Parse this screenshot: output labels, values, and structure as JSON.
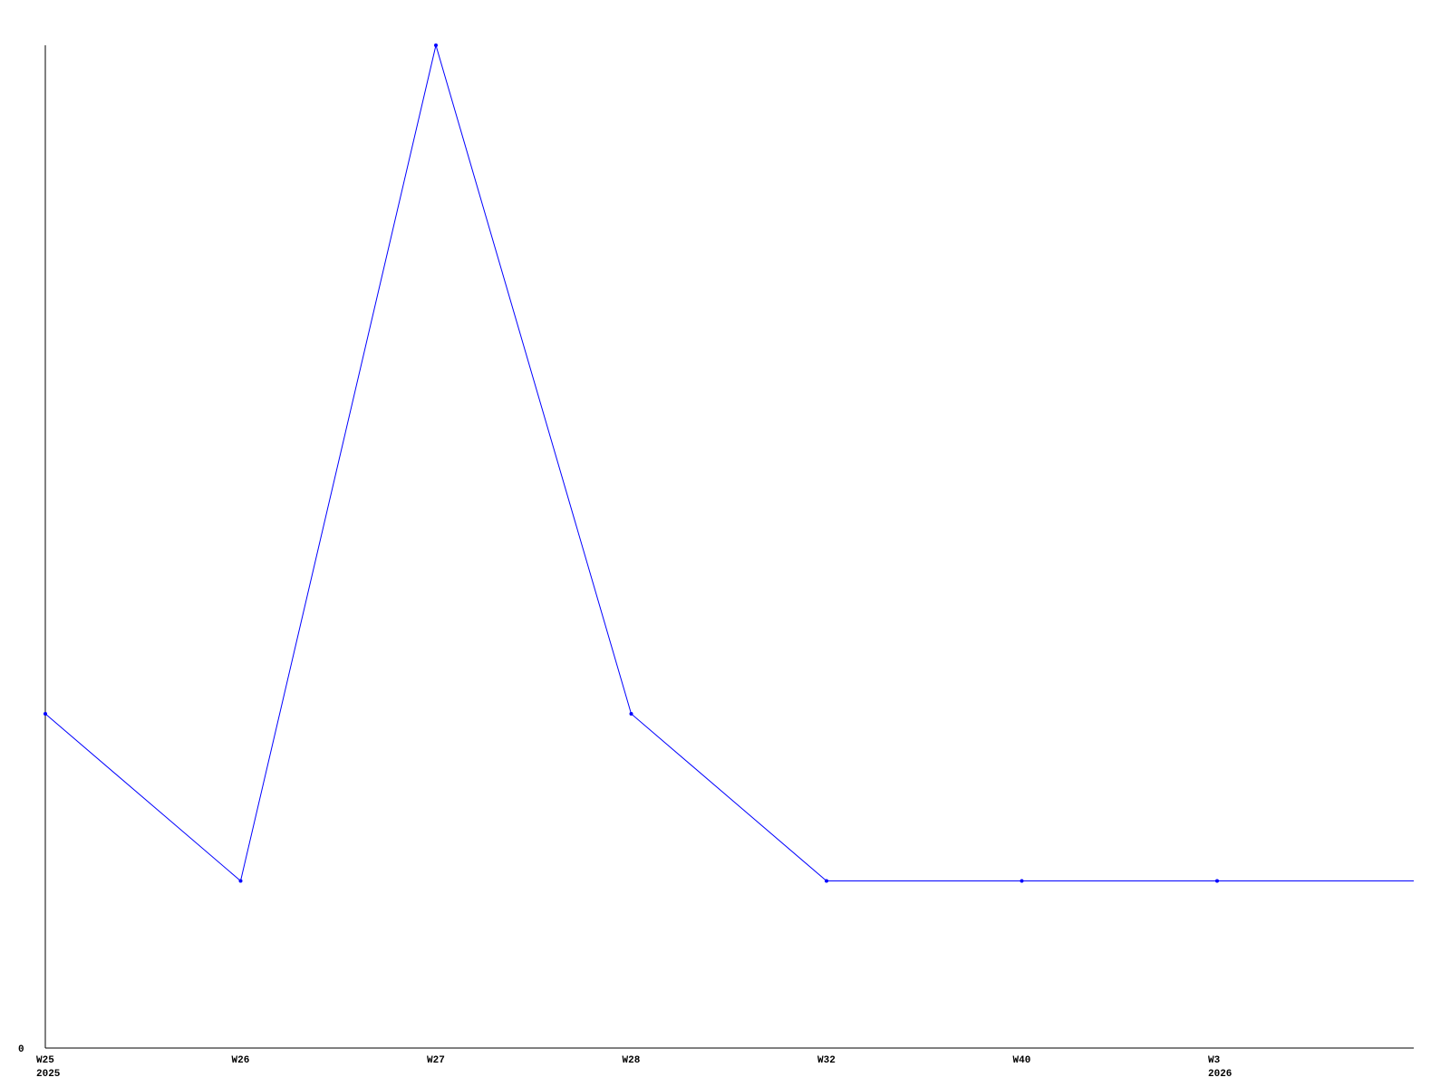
{
  "chart_data": {
    "type": "line",
    "title": "",
    "xlabel": "",
    "ylabel": "",
    "categories": [
      "W25",
      "W26",
      "W27",
      "W28",
      "W32",
      "W40",
      "W3"
    ],
    "year_labels": {
      "W25": "2025",
      "W3": "2026"
    },
    "series": [
      {
        "values": [
          2,
          1,
          6,
          2,
          1,
          1,
          1
        ],
        "color": "#0000ff"
      }
    ],
    "ylim": [
      0,
      6
    ],
    "y_tick_labels": [
      "0"
    ],
    "grid": false,
    "legend": "none",
    "extends_right_at_last_value": true
  }
}
